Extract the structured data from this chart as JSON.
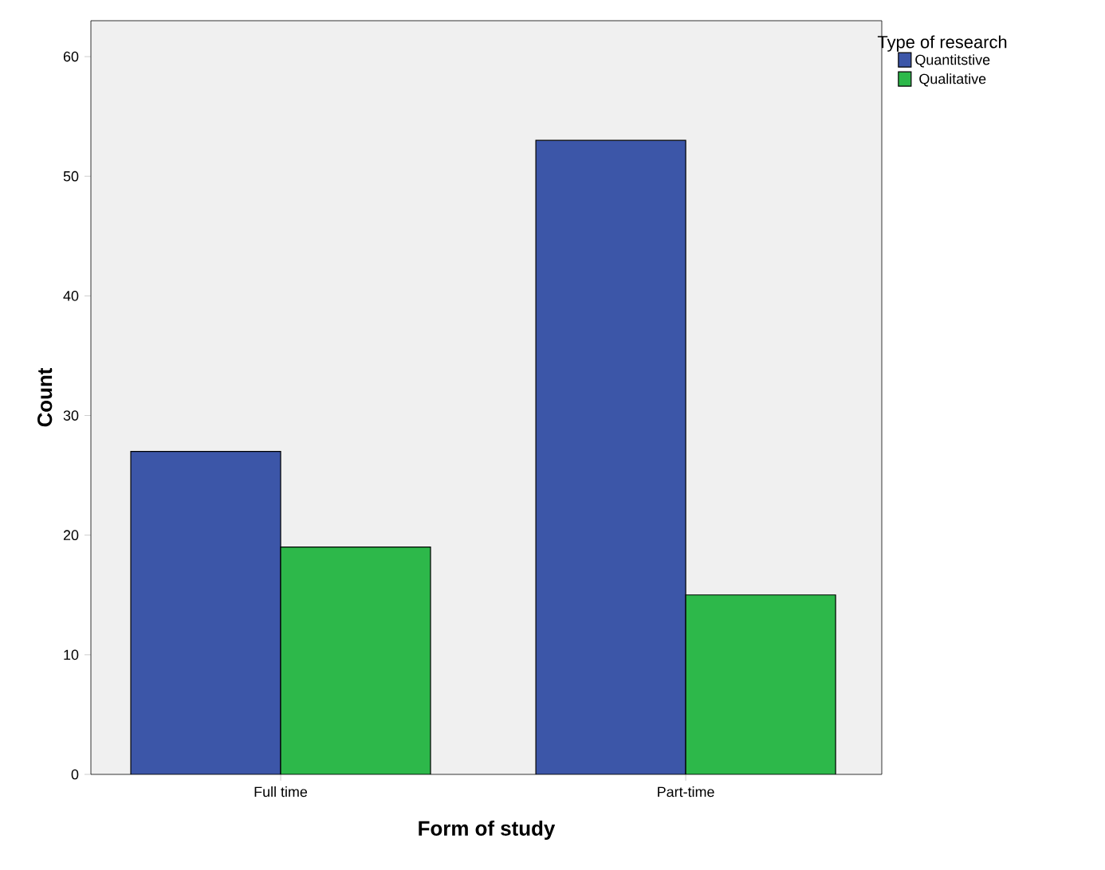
{
  "chart_data": {
    "type": "bar",
    "xlabel": "Form of study",
    "ylabel": "Count",
    "legend_title": "Type of research",
    "categories": [
      "Full time",
      "Part-time"
    ],
    "series": [
      {
        "name": "Quantitstive",
        "color": "#3c56a8",
        "values": [
          27,
          53
        ]
      },
      {
        "name": "Qualitative",
        "color": "#2db84a",
        "values": [
          19,
          15
        ]
      }
    ],
    "ylim": [
      0,
      63
    ],
    "yticks": [
      0,
      10,
      20,
      30,
      40,
      50,
      60
    ],
    "grid": false,
    "legend": "top right"
  }
}
